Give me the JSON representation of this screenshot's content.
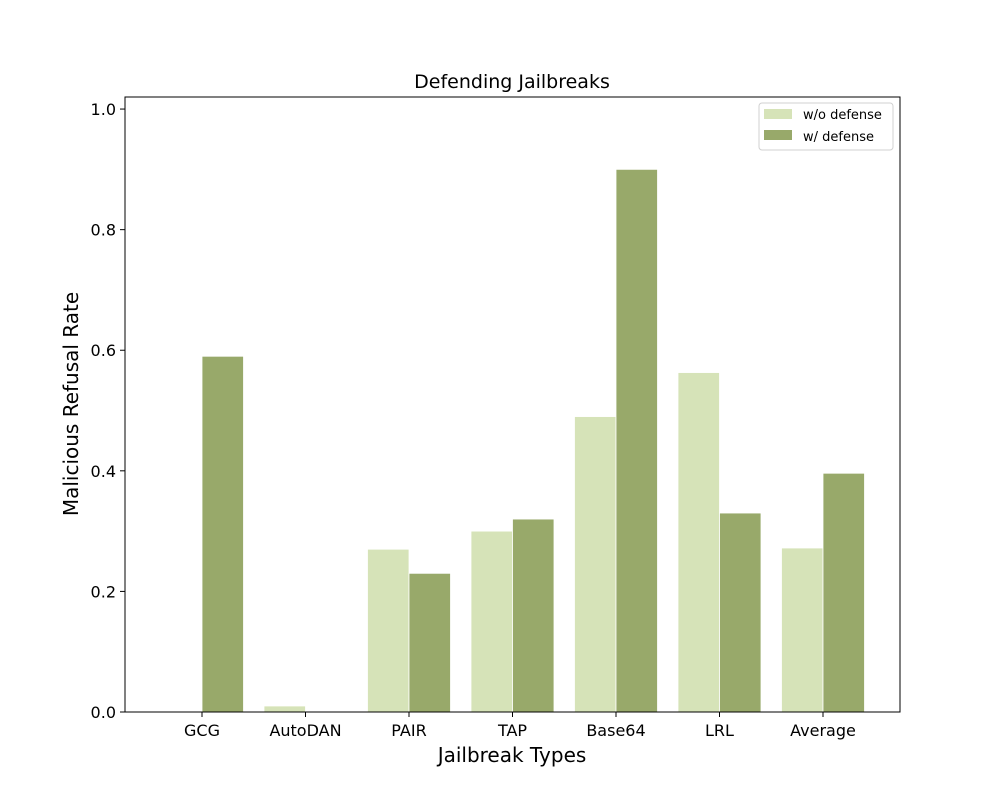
{
  "chart_data": {
    "type": "bar",
    "title": "Defending Jailbreaks",
    "xlabel": "Jailbreak Types",
    "ylabel": "Malicious Refusal Rate",
    "categories": [
      "GCG",
      "AutoDAN",
      "PAIR",
      "TAP",
      "Base64",
      "LRL",
      "Average"
    ],
    "series": [
      {
        "name": "w/o defense",
        "color": "#d6e3b8",
        "values": [
          0.0,
          0.01,
          0.27,
          0.3,
          0.49,
          0.563,
          0.272
        ]
      },
      {
        "name": "w/ defense",
        "color": "#98a96a",
        "values": [
          0.59,
          0.0,
          0.23,
          0.32,
          0.9,
          0.33,
          0.396
        ]
      }
    ],
    "ylim": [
      0,
      1.02
    ],
    "yticks": [
      "0.0",
      "0.2",
      "0.4",
      "0.6",
      "0.8",
      "1.0"
    ],
    "grid": false,
    "legend_position": "top-right"
  }
}
